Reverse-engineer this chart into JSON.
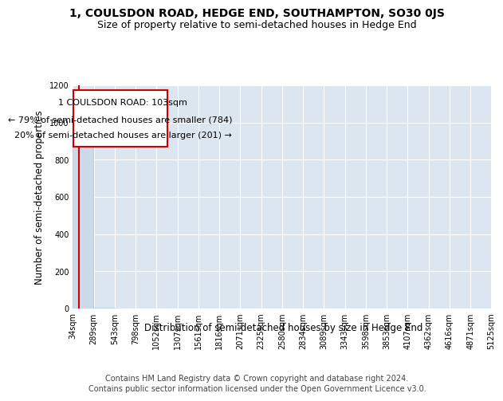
{
  "title": "1, COULSDON ROAD, HEDGE END, SOUTHAMPTON, SO30 0JS",
  "subtitle": "Size of property relative to semi-detached houses in Hedge End",
  "xlabel": "Distribution of semi-detached houses by size in Hedge End",
  "ylabel": "Number of semi-detached properties",
  "bin_labels": [
    "34sqm",
    "289sqm",
    "543sqm",
    "798sqm",
    "1052sqm",
    "1307sqm",
    "1561sqm",
    "1816sqm",
    "2071sqm",
    "2325sqm",
    "2580sqm",
    "2834sqm",
    "3089sqm",
    "3343sqm",
    "3598sqm",
    "3853sqm",
    "4107sqm",
    "4362sqm",
    "4616sqm",
    "4871sqm",
    "5125sqm"
  ],
  "bin_edges": [
    34,
    289,
    543,
    798,
    1052,
    1307,
    1561,
    1816,
    2071,
    2325,
    2580,
    2834,
    3089,
    3343,
    3598,
    3853,
    4107,
    4362,
    4616,
    4871,
    5125
  ],
  "bar_heights": [
    985,
    4,
    1,
    1,
    0,
    0,
    0,
    0,
    0,
    0,
    0,
    0,
    0,
    0,
    0,
    0,
    0,
    0,
    0,
    0
  ],
  "bar_color": "#ccd9e8",
  "bar_edge_color": "#b0c4d8",
  "property_size": 103,
  "property_label": "1 COULSDON ROAD: 103sqm",
  "pct_smaller": 79,
  "count_smaller": 784,
  "pct_larger": 20,
  "count_larger": 201,
  "marker_color": "#cc0000",
  "annotation_box_color": "#cc0000",
  "ylim": [
    0,
    1200
  ],
  "yticks": [
    0,
    200,
    400,
    600,
    800,
    1000,
    1200
  ],
  "plot_bg_color": "#dce6f0",
  "grid_color": "#ffffff",
  "fig_bg_color": "#ffffff",
  "footer_line1": "Contains HM Land Registry data © Crown copyright and database right 2024.",
  "footer_line2": "Contains public sector information licensed under the Open Government Licence v3.0.",
  "title_fontsize": 10,
  "subtitle_fontsize": 9,
  "axis_label_fontsize": 8.5,
  "tick_fontsize": 7,
  "footer_fontsize": 7,
  "annotation_fontsize": 8
}
